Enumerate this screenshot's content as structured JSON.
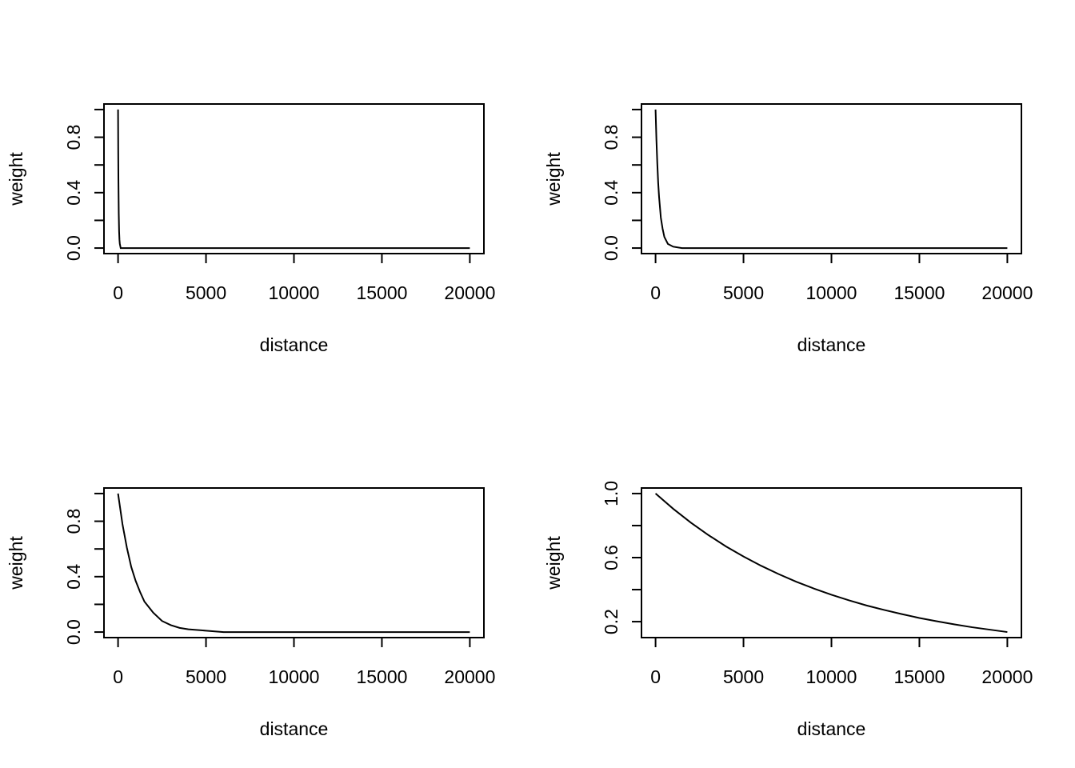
{
  "chart_data": [
    {
      "type": "line",
      "title": "",
      "xlabel": "distance",
      "ylabel": "weight",
      "xlim": [
        0,
        20000
      ],
      "ylim": [
        0,
        1
      ],
      "xticks": [
        0,
        5000,
        10000,
        15000,
        20000
      ],
      "xtick_labels": [
        "0",
        "5000",
        "10000",
        "15000",
        "20000"
      ],
      "yticks": [
        0,
        0.2,
        0.4,
        0.6,
        0.8,
        1.0
      ],
      "ytick_labels": [
        "0.0",
        "",
        "0.4",
        "",
        "0.8",
        ""
      ],
      "series": [
        {
          "x": [
            0,
            10,
            20,
            40,
            60,
            80,
            100,
            150,
            200,
            20000
          ],
          "values": [
            1.0,
            0.7,
            0.5,
            0.25,
            0.12,
            0.06,
            0.03,
            0.0,
            0.0,
            0.0
          ]
        }
      ]
    },
    {
      "type": "line",
      "title": "",
      "xlabel": "distance",
      "ylabel": "weight",
      "xlim": [
        0,
        20000
      ],
      "ylim": [
        0,
        1
      ],
      "xticks": [
        0,
        5000,
        10000,
        15000,
        20000
      ],
      "xtick_labels": [
        "0",
        "5000",
        "10000",
        "15000",
        "20000"
      ],
      "yticks": [
        0,
        0.2,
        0.4,
        0.6,
        0.8,
        1.0
      ],
      "ytick_labels": [
        "0.0",
        "",
        "0.4",
        "",
        "0.8",
        ""
      ],
      "series": [
        {
          "x": [
            0,
            50,
            100,
            150,
            200,
            300,
            400,
            500,
            700,
            1000,
            1500,
            20000
          ],
          "values": [
            1.0,
            0.78,
            0.61,
            0.47,
            0.37,
            0.22,
            0.14,
            0.08,
            0.03,
            0.01,
            0.0,
            0.0
          ]
        }
      ]
    },
    {
      "type": "line",
      "title": "",
      "xlabel": "distance",
      "ylabel": "weight",
      "xlim": [
        0,
        20000
      ],
      "ylim": [
        0,
        1
      ],
      "xticks": [
        0,
        5000,
        10000,
        15000,
        20000
      ],
      "xtick_labels": [
        "0",
        "5000",
        "10000",
        "15000",
        "20000"
      ],
      "yticks": [
        0,
        0.2,
        0.4,
        0.6,
        0.8,
        1.0
      ],
      "ytick_labels": [
        "0.0",
        "",
        "0.4",
        "",
        "0.8",
        ""
      ],
      "series": [
        {
          "x": [
            0,
            250,
            500,
            750,
            1000,
            1250,
            1500,
            2000,
            2500,
            3000,
            3500,
            4000,
            5000,
            6000,
            7000,
            8000,
            10000,
            15000,
            20000
          ],
          "values": [
            1.0,
            0.78,
            0.61,
            0.47,
            0.37,
            0.29,
            0.22,
            0.14,
            0.08,
            0.05,
            0.03,
            0.02,
            0.01,
            0.0,
            0.0,
            0.0,
            0.0,
            0.0,
            0.0
          ]
        }
      ]
    },
    {
      "type": "line",
      "title": "",
      "xlabel": "distance",
      "ylabel": "weight",
      "xlim": [
        0,
        20000
      ],
      "ylim": [
        0.135,
        1
      ],
      "xticks": [
        0,
        5000,
        10000,
        15000,
        20000
      ],
      "xtick_labels": [
        "0",
        "5000",
        "10000",
        "15000",
        "20000"
      ],
      "yticks": [
        0.2,
        0.4,
        0.6,
        0.8,
        1.0
      ],
      "ytick_labels": [
        "0.2",
        "",
        "0.6",
        "",
        "1.0"
      ],
      "series": [
        {
          "x": [
            0,
            1000,
            2000,
            3000,
            4000,
            5000,
            6000,
            7000,
            8000,
            9000,
            10000,
            11000,
            12000,
            13000,
            14000,
            15000,
            16000,
            17000,
            18000,
            19000,
            20000
          ],
          "values": [
            1.0,
            0.905,
            0.819,
            0.741,
            0.67,
            0.607,
            0.549,
            0.497,
            0.449,
            0.407,
            0.368,
            0.333,
            0.301,
            0.273,
            0.247,
            0.223,
            0.202,
            0.183,
            0.165,
            0.15,
            0.135
          ]
        }
      ]
    }
  ]
}
